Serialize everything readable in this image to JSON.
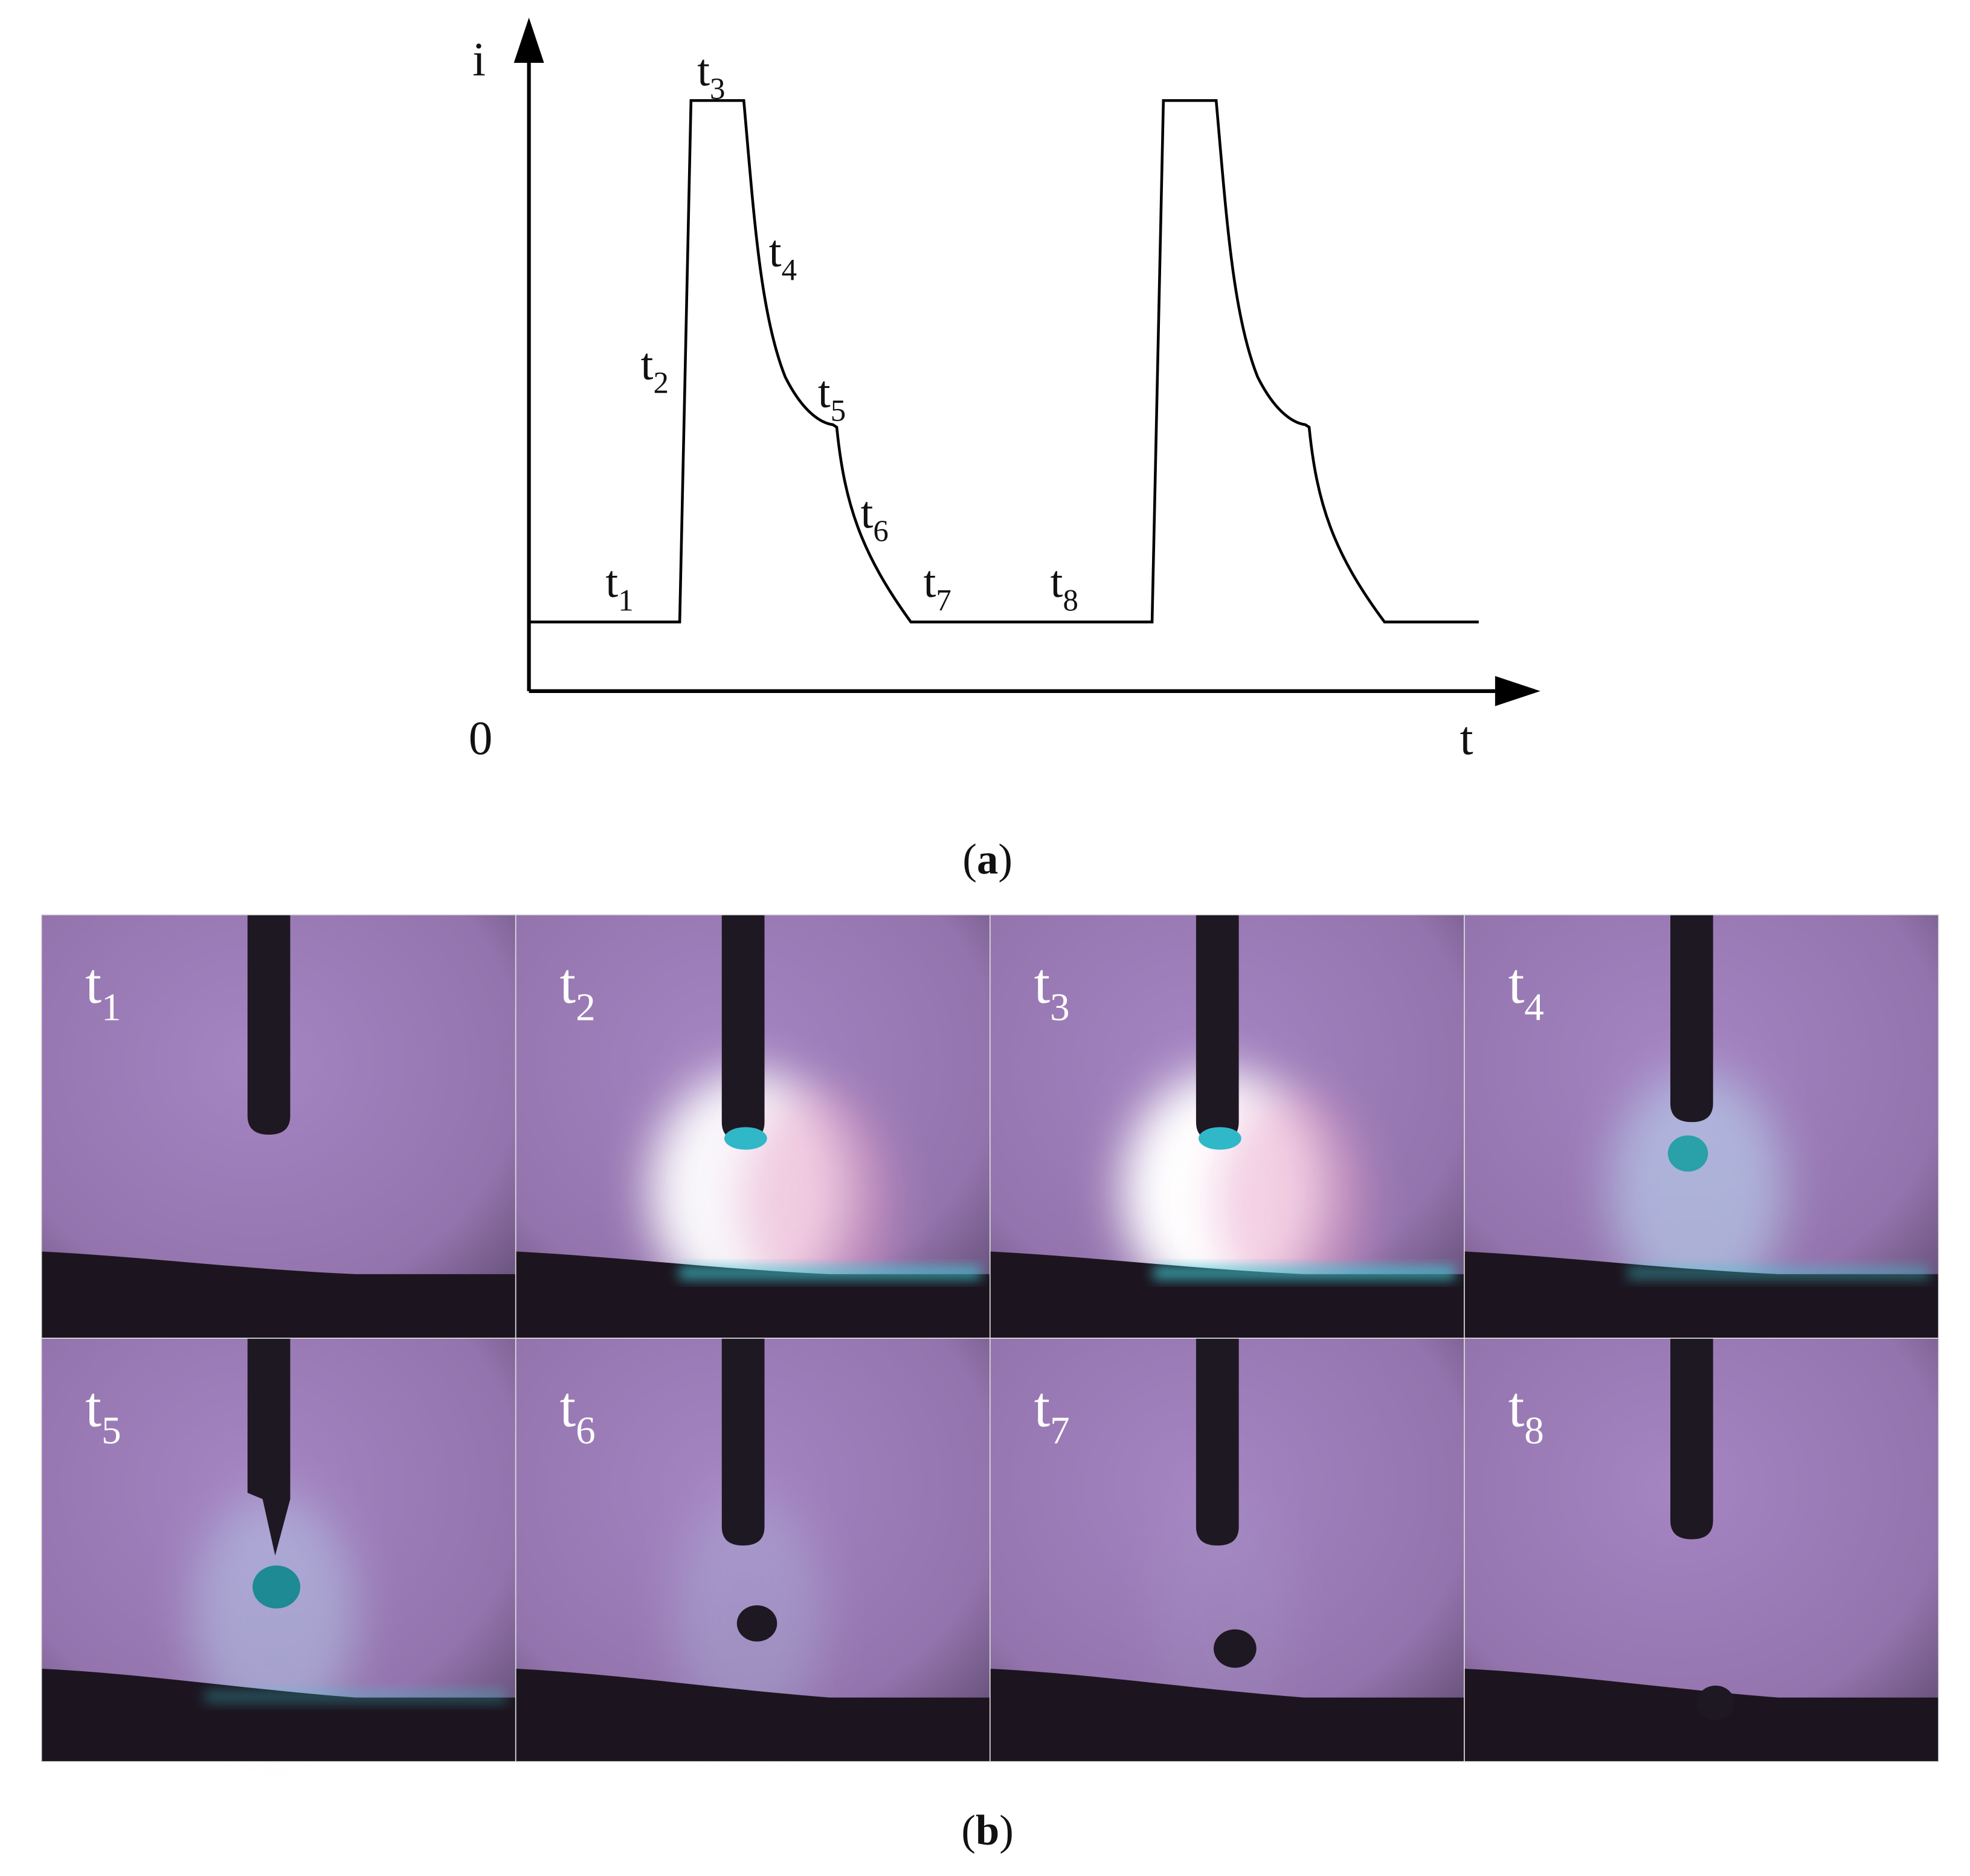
{
  "figure": {
    "part_a": {
      "axis_y": "i",
      "axis_x": "t",
      "origin": "0",
      "labels": [
        {
          "base": "t",
          "sub": "1"
        },
        {
          "base": "t",
          "sub": "2"
        },
        {
          "base": "t",
          "sub": "3"
        },
        {
          "base": "t",
          "sub": "4"
        },
        {
          "base": "t",
          "sub": "5"
        },
        {
          "base": "t",
          "sub": "6"
        },
        {
          "base": "t",
          "sub": "7"
        },
        {
          "base": "t",
          "sub": "8"
        }
      ],
      "caption": {
        "open": "(",
        "letter": "a",
        "close": ")"
      }
    },
    "part_b": {
      "panels": [
        {
          "base": "t",
          "sub": "1"
        },
        {
          "base": "t",
          "sub": "2"
        },
        {
          "base": "t",
          "sub": "3"
        },
        {
          "base": "t",
          "sub": "4"
        },
        {
          "base": "t",
          "sub": "5"
        },
        {
          "base": "t",
          "sub": "6"
        },
        {
          "base": "t",
          "sub": "7"
        },
        {
          "base": "t",
          "sub": "8"
        }
      ],
      "caption": {
        "open": "(",
        "letter": "b",
        "close": ")"
      }
    }
  }
}
